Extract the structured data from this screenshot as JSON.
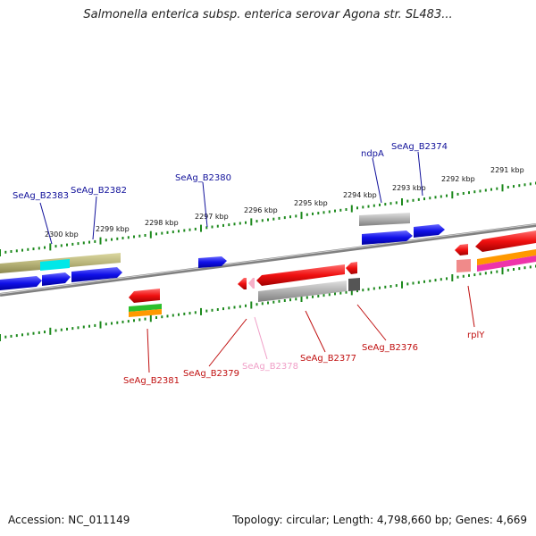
{
  "title": "Salmonella enterica subsp. enterica serovar Agona str. SL483...",
  "footer": {
    "accession": "Accession: NC_011149",
    "summary": "Topology: circular; Length: 4,798,660 bp; Genes: 4,669"
  },
  "ruler_labels": [
    "2300 kbp",
    "2299 kbp",
    "2298 kbp",
    "2297 kbp",
    "2296 kbp",
    "2295 kbp",
    "2294 kbp",
    "2293 kbp",
    "2292 kbp",
    "2291 kbp"
  ],
  "gene_labels_top": [
    "SeAg_B2383",
    "SeAg_B2382",
    "SeAg_B2380",
    "ndpA",
    "SeAg_B2374"
  ],
  "gene_labels_bottom": [
    "SeAg_B2381",
    "SeAg_B2379",
    "SeAg_B2378",
    "SeAg_B2377",
    "SeAg_B2376",
    "rplY"
  ],
  "colors": {
    "forward_cds": "#1010e0",
    "reverse_cds": "#e01010",
    "pseudo": "#b0b0b0",
    "misc": "#b9b57a",
    "ruler": "#1e8a1e",
    "backbone": "#808080",
    "label_blue": "#10109a",
    "label_red": "#c01010",
    "label_pink": "#f0a0c8"
  }
}
